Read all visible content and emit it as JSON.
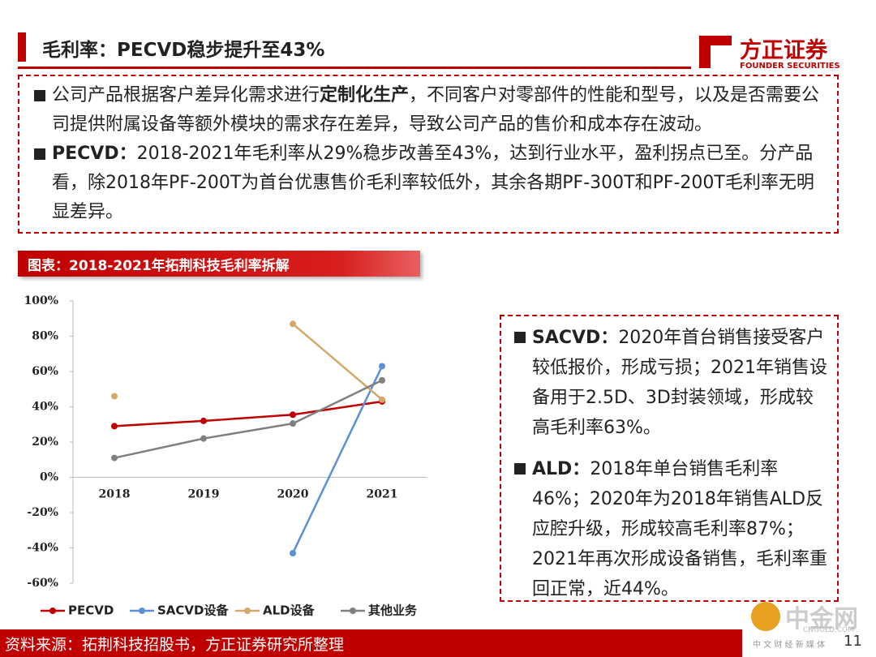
{
  "header": {
    "title": "毛利率：PECVD稳步提升至43%",
    "logo": "方正证券",
    "logo_sub": "FOUNDER SECURITIES"
  },
  "bullets": [
    [
      {
        "text": "公司产品根据客户差异化需求进行",
        "bold": false
      },
      {
        "text": "定制化生产",
        "bold": true
      },
      {
        "text": "，不同客户对零部件的性能和型号，以及是否需要公司提供附属设备等额外模块的需求存在差异，导致公司产品的售价和成本存在波动。",
        "bold": false
      }
    ],
    [
      {
        "text": "PECVD：",
        "bold": true
      },
      {
        "text": "2018-2021年毛利率从29%稳步改善至43%，达到行业水平，盈利拐点已至。分产品看，除2018年PF-200T为首台优惠售价毛利率较低外，其余各期PF-300T和PF-200T毛利率无明显差异。",
        "bold": false
      }
    ]
  ],
  "figure_caption": "图表：2018-2021年拓荆科技毛利率拆解",
  "notes": [
    [
      {
        "text": "SACVD：",
        "bold": true
      },
      {
        "text": "2020年首台销售接受客户较低报价，形成亏损；2021年销售设备用于2.5D、3D封装领域，形成较高毛利率63%。",
        "bold": false
      }
    ],
    [
      {
        "text": "ALD：",
        "bold": true
      },
      {
        "text": "2018年单台销售毛利率46%；2020年为2018年销售ALD反应腔升级，形成较高毛利率87%；2021年再次形成设备销售，毛利率重回正常，近44%。",
        "bold": false
      }
    ]
  ],
  "chart_data": {
    "type": "line",
    "categories": [
      "2018",
      "2019",
      "2020",
      "2021"
    ],
    "series": [
      {
        "name": "PECVD",
        "color": "#c00000",
        "values": [
          29,
          32,
          35.5,
          43
        ]
      },
      {
        "name": "SACVD设备",
        "color": "#5b8fd6",
        "values": [
          null,
          null,
          -43,
          63
        ]
      },
      {
        "name": "ALD设备",
        "color": "#d4a76a",
        "values": [
          46,
          null,
          87,
          44
        ]
      },
      {
        "name": "其他业务",
        "color": "#808080",
        "values": [
          11,
          22,
          30.5,
          55
        ]
      }
    ],
    "ylim": [
      -60,
      100
    ],
    "yticks": [
      {
        "value": -60,
        "label": "-60%"
      },
      {
        "value": -40,
        "label": "-40%"
      },
      {
        "value": -20,
        "label": "-20%"
      },
      {
        "value": 0,
        "label": "0%"
      },
      {
        "value": 20,
        "label": "20%"
      },
      {
        "value": 40,
        "label": "40%"
      },
      {
        "value": 60,
        "label": "60%"
      },
      {
        "value": 80,
        "label": "80%"
      },
      {
        "value": 100,
        "label": "100%"
      }
    ],
    "grid": false
  },
  "footer": {
    "source": "资料来源：拓荆科技招股书，方正证券研究所整理",
    "page": "11",
    "watermark": "中金网",
    "watermark_sub": "CNGOLD.COM",
    "watermark_tag": "中 文 财 经 新 媒 体"
  }
}
